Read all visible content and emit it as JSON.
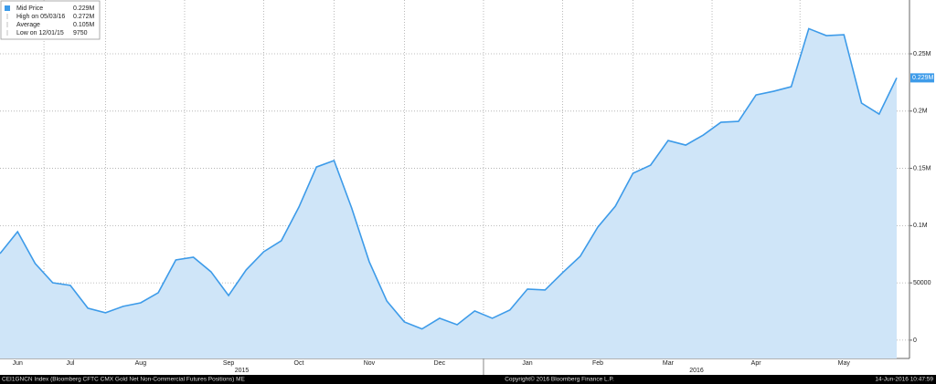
{
  "chart_data": {
    "type": "area",
    "categories": [
      null,
      "Jun",
      null,
      null,
      "Jul",
      null,
      null,
      null,
      "Aug",
      null,
      null,
      null,
      null,
      "Sep",
      null,
      null,
      null,
      "Oct",
      null,
      null,
      null,
      "Nov",
      null,
      null,
      null,
      "Dec",
      null,
      null,
      null,
      null,
      "Jan",
      null,
      null,
      null,
      "Feb",
      null,
      null,
      null,
      "Mar",
      null,
      null,
      null,
      null,
      "Apr",
      null,
      null,
      null,
      null,
      "May",
      null,
      null,
      null
    ],
    "year_labels": [
      "2015",
      "2016"
    ],
    "series": [
      {
        "name": "Mid Price",
        "color": "#3d9be9",
        "fill": "#cfe5f8",
        "values": [
          75600,
          94700,
          66900,
          50100,
          47800,
          27900,
          23900,
          29500,
          32600,
          41400,
          70000,
          72400,
          59700,
          39000,
          61300,
          77200,
          86800,
          116200,
          151200,
          156800,
          115400,
          68500,
          34200,
          15900,
          9750,
          19100,
          13500,
          25500,
          19100,
          26300,
          44600,
          43800,
          58900,
          73200,
          98700,
          117000,
          145700,
          152800,
          174300,
          170300,
          179100,
          190200,
          191000,
          214100,
          217300,
          221300,
          272000,
          265900,
          266700,
          207000,
          197400,
          229000
        ]
      }
    ],
    "last_value_label": "0.229M",
    "legend": [
      {
        "label": "Mid Price",
        "value": "0.229M"
      },
      {
        "label": "High on 05/03/16",
        "value": "0.272M"
      },
      {
        "label": "Average",
        "value": "0.105M"
      },
      {
        "label": "Low on 12/01/15",
        "value": "9750"
      }
    ],
    "ylim": [
      -16000,
      297000
    ],
    "yticks": [
      0,
      50000,
      {
        "value": 100000,
        "label": "0.1M"
      },
      {
        "value": 150000,
        "label": "0.15M"
      },
      {
        "value": 200000,
        "label": "0.2M"
      },
      {
        "value": 250000,
        "label": "0.25M"
      }
    ],
    "grid": true,
    "footer": {
      "left": "CEI1GNCN Index (Bloomberg CFTC CMX Gold Net Non-Commercial Futures Positions) ME",
      "center": "Copyright© 2016 Bloomberg Finance L.P.",
      "right": "14-Jun-2016 10:47:59"
    }
  }
}
